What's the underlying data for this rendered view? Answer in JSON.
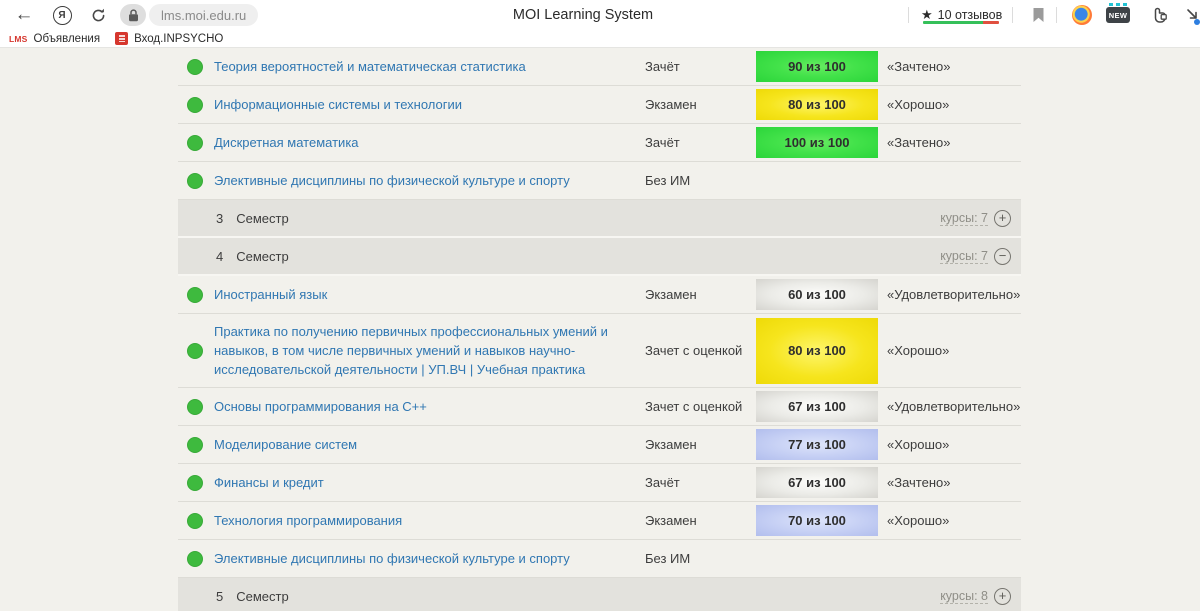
{
  "chrome": {
    "url": "lms.moi.edu.ru",
    "page_title": "MOI Learning System",
    "rating": {
      "star": "★",
      "label": "10 отзывов"
    },
    "new_badge_label": "NEW",
    "yandex_letter": "Я",
    "bookmarks": [
      {
        "label": "Объявления",
        "favicon": "lms-text-logo"
      },
      {
        "label": "Вход.INPSYCHO",
        "favicon": "red-emblem"
      }
    ],
    "lms_logo_text": "LMS"
  },
  "colors": {
    "badge_green": "#34d73e",
    "badge_yellow": "#f2e00e",
    "badge_gray": "#dddcd8",
    "badge_blue": "#b9c5f0",
    "status_dot_green": "#3eba3e",
    "course_link_blue": "#3077b2",
    "semester_row_bg": "#e3e2dd",
    "rating_green": "#35c05a",
    "rating_red": "#e0503f"
  },
  "table": {
    "rows": [
      {
        "type": "course",
        "name": "Теория вероятностей и математическая статистика",
        "exam": "Зачёт",
        "score": "90 из 100",
        "badge": "green",
        "grade": "«Зачтено»"
      },
      {
        "type": "course",
        "name": "Информационные системы и технологии",
        "exam": "Экзамен",
        "score": "80 из 100",
        "badge": "yellow",
        "grade": "«Хорошо»"
      },
      {
        "type": "course",
        "name": "Дискретная математика",
        "exam": "Зачёт",
        "score": "100 из 100",
        "badge": "green",
        "grade": "«Зачтено»"
      },
      {
        "type": "course",
        "name": "Элективные дисциплины по физической культуре и спорту",
        "exam": "Без ИМ",
        "score": "",
        "badge": "",
        "grade": ""
      },
      {
        "type": "semester",
        "number": "3",
        "label": "Семестр",
        "courses_label": "курсы: 7",
        "toggle": "plus"
      },
      {
        "type": "semester",
        "number": "4",
        "label": "Семестр",
        "courses_label": "курсы: 7",
        "toggle": "minus"
      },
      {
        "type": "course",
        "name": "Иностранный язык",
        "exam": "Экзамен",
        "score": "60 из 100",
        "badge": "gray",
        "grade": "«Удовлетворительно»"
      },
      {
        "type": "course",
        "name": "Практика по получению первичных профессиональных умений и навыков, в том числе первичных умений и навыков научно-исследовательской деятельности | УП.ВЧ | Учебная практика",
        "exam": "Зачет с оценкой",
        "score": "80 из 100",
        "badge": "yellow",
        "grade": "«Хорошо»"
      },
      {
        "type": "course",
        "name": "Основы программирования на C++",
        "exam": "Зачет с оценкой",
        "score": "67 из 100",
        "badge": "gray",
        "grade": "«Удовлетворительно»"
      },
      {
        "type": "course",
        "name": "Моделирование систем",
        "exam": "Экзамен",
        "score": "77 из 100",
        "badge": "blue",
        "grade": "«Хорошо»"
      },
      {
        "type": "course",
        "name": "Финансы и кредит",
        "exam": "Зачёт",
        "score": "67 из 100",
        "badge": "gray",
        "grade": "«Зачтено»"
      },
      {
        "type": "course",
        "name": "Технология программирования",
        "exam": "Экзамен",
        "score": "70 из 100",
        "badge": "blue",
        "grade": "«Хорошо»"
      },
      {
        "type": "course",
        "name": "Элективные дисциплины по физической культуре и спорту",
        "exam": "Без ИМ",
        "score": "",
        "badge": "",
        "grade": ""
      },
      {
        "type": "semester",
        "number": "5",
        "label": "Семестр",
        "courses_label": "курсы: 8",
        "toggle": "plus"
      }
    ]
  }
}
